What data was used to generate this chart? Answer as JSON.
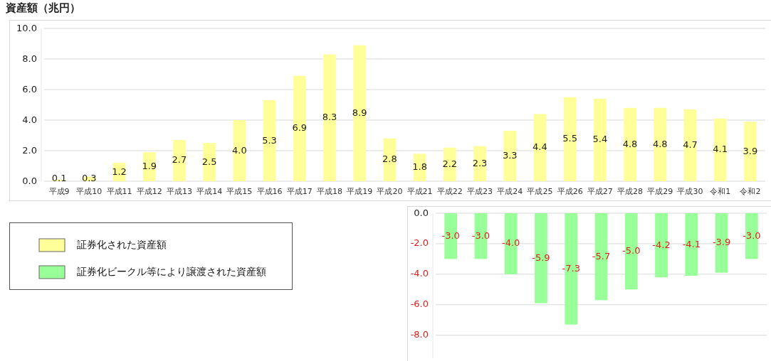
{
  "chart_data": [
    {
      "type": "bar",
      "ylabel": "資産額（兆円）",
      "categories": [
        "平成9",
        "平成10",
        "平成11",
        "平成12",
        "平成13",
        "平成14",
        "平成15",
        "平成16",
        "平成17",
        "平成18",
        "平成19",
        "平成20",
        "平成21",
        "平成22",
        "平成23",
        "平成24",
        "平成25",
        "平成26",
        "平成27",
        "平成28",
        "平成29",
        "平成30",
        "令和1",
        "令和2"
      ],
      "series": [
        {
          "name": "証券化された資産額",
          "color": "#ffff99",
          "values": [
            0.1,
            0.3,
            1.2,
            1.9,
            2.7,
            2.5,
            4.0,
            5.3,
            6.9,
            8.3,
            8.9,
            2.8,
            1.8,
            2.2,
            2.3,
            3.3,
            4.4,
            5.5,
            5.4,
            4.8,
            4.8,
            4.7,
            4.1,
            3.9
          ],
          "value_labels": [
            "0.1",
            "0.3",
            "1.2",
            "1.9",
            "2.7",
            "2.5",
            "4.0",
            "5.3",
            "6.9",
            "8.3",
            "8.9",
            "2.8",
            "1.8",
            "2.2",
            "2.3",
            "3.3",
            "4.4",
            "5.5",
            "5.4",
            "4.8",
            "4.8",
            "4.7",
            "4.1",
            "3.9"
          ]
        }
      ],
      "ylim": [
        0,
        10
      ],
      "yticks": [
        {
          "value": 0,
          "label": "0.0"
        },
        {
          "value": 2,
          "label": "2.0"
        },
        {
          "value": 4,
          "label": "4.0"
        },
        {
          "value": 6,
          "label": "6.0"
        },
        {
          "value": 8,
          "label": "8.0"
        },
        {
          "value": 10,
          "label": "10.0"
        }
      ],
      "grid": "y",
      "legend": "bottom left"
    },
    {
      "type": "bar",
      "categories": [
        null,
        null,
        null,
        null,
        null,
        null,
        null,
        null,
        null,
        null,
        null
      ],
      "series": [
        {
          "name": "証券化ビークル等により譲渡された資産額",
          "color": "#99ff99",
          "values": [
            -3.0,
            -3.0,
            -4.0,
            -5.9,
            -7.3,
            -5.7,
            -5.0,
            -4.2,
            -4.1,
            -3.9,
            -3.0
          ],
          "value_labels": [
            "-3.0",
            "-3.0",
            "-4.0",
            "-5.9",
            "-7.3",
            "-5.7",
            "-5.0",
            "-4.2",
            "-4.1",
            "-3.9",
            "-3.0"
          ]
        }
      ],
      "ylim": [
        -9.5,
        0
      ],
      "yticks": [
        {
          "value": 0,
          "label": "0.0"
        },
        {
          "value": -2,
          "label": "-2.0"
        },
        {
          "value": -4,
          "label": "-4.0"
        },
        {
          "value": -6,
          "label": "-6.0"
        },
        {
          "value": -8,
          "label": "-8.0"
        }
      ],
      "grid": "y",
      "tick_labels": "y",
      "legend": "left"
    }
  ]
}
